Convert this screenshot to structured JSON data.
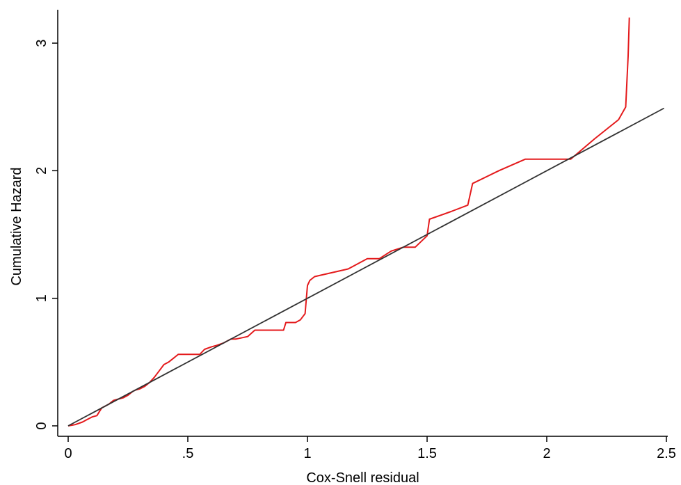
{
  "chart_data": {
    "type": "line",
    "title": "",
    "xlabel": "Cox-Snell residual",
    "ylabel": "Cumulative Hazard",
    "xlim": [
      0,
      2.5
    ],
    "ylim": [
      0,
      3.2
    ],
    "x_ticks": [
      {
        "value": 0,
        "label": "0"
      },
      {
        "value": 0.5,
        "label": ".5"
      },
      {
        "value": 1,
        "label": "1"
      },
      {
        "value": 1.5,
        "label": "1.5"
      },
      {
        "value": 2,
        "label": "2"
      },
      {
        "value": 2.5,
        "label": "2.5"
      }
    ],
    "y_ticks": [
      {
        "value": 0,
        "label": "0"
      },
      {
        "value": 1,
        "label": "1"
      },
      {
        "value": 2,
        "label": "2"
      },
      {
        "value": 3,
        "label": "3"
      }
    ],
    "grid": false,
    "legend": "none",
    "series": [
      {
        "color": "#e41a1c",
        "x": [
          0,
          0.03,
          0.06,
          0.08,
          0.1,
          0.12,
          0.13,
          0.14,
          0.15,
          0.17,
          0.19,
          0.21,
          0.23,
          0.25,
          0.27,
          0.28,
          0.3,
          0.32,
          0.34,
          0.36,
          0.38,
          0.4,
          0.42,
          0.44,
          0.46,
          0.48,
          0.5,
          0.52,
          0.55,
          0.57,
          0.6,
          0.62,
          0.65,
          0.68,
          0.7,
          0.75,
          0.78,
          0.8,
          0.85,
          0.9,
          0.91,
          0.95,
          0.97,
          0.99,
          1.0,
          1.01,
          1.03,
          1.1,
          1.17,
          1.25,
          1.3,
          1.35,
          1.4,
          1.45,
          1.5,
          1.51,
          1.6,
          1.67,
          1.69,
          1.8,
          1.91,
          2.0,
          2.1,
          2.2,
          2.3,
          2.33,
          2.34,
          2.345
        ],
        "y": [
          0,
          0.01,
          0.03,
          0.05,
          0.07,
          0.08,
          0.11,
          0.14,
          0.15,
          0.17,
          0.2,
          0.21,
          0.22,
          0.24,
          0.27,
          0.28,
          0.29,
          0.31,
          0.34,
          0.38,
          0.43,
          0.48,
          0.5,
          0.53,
          0.56,
          0.56,
          0.56,
          0.56,
          0.56,
          0.6,
          0.62,
          0.63,
          0.65,
          0.68,
          0.68,
          0.7,
          0.75,
          0.75,
          0.75,
          0.75,
          0.81,
          0.81,
          0.83,
          0.88,
          1.1,
          1.14,
          1.17,
          1.2,
          1.23,
          1.31,
          1.31,
          1.37,
          1.4,
          1.4,
          1.49,
          1.62,
          1.68,
          1.73,
          1.9,
          2.0,
          2.09,
          2.09,
          2.09,
          2.25,
          2.4,
          2.5,
          2.9,
          3.2
        ]
      },
      {
        "color": "#333333",
        "x": [
          0,
          2.49
        ],
        "y": [
          0,
          2.49
        ]
      }
    ]
  }
}
